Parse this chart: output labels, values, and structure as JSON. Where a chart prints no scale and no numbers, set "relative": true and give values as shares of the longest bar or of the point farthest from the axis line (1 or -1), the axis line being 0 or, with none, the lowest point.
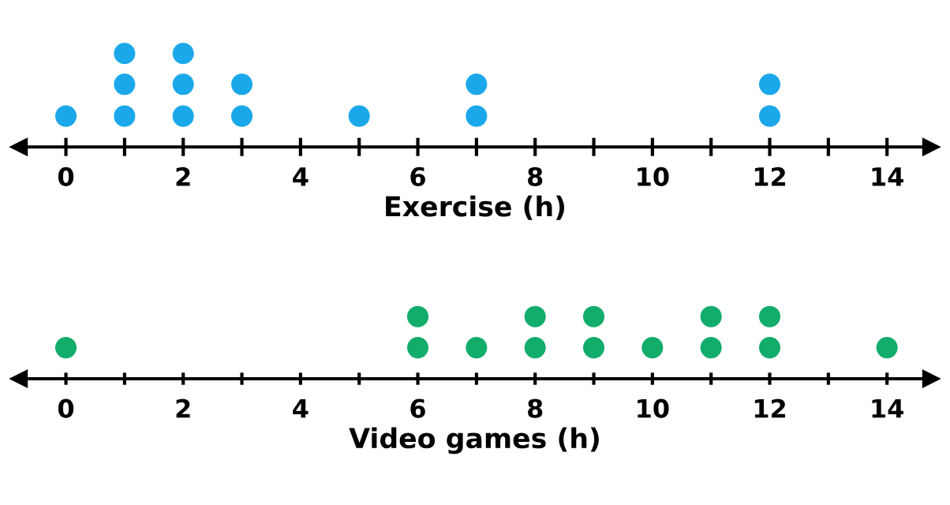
{
  "chart_data": [
    {
      "type": "scatter",
      "xlabel": "Exercise (h)",
      "color": "#1ba8ea",
      "marker": "circle",
      "x": [
        0,
        1,
        1,
        1,
        2,
        2,
        2,
        3,
        3,
        5,
        7,
        7,
        12,
        12
      ],
      "values": [
        0.33,
        0.33,
        0.67,
        1,
        0.33,
        0.67,
        1,
        0.33,
        0.67,
        0.33,
        0.33,
        0.67,
        0.33,
        0.67
      ],
      "xlim": [
        -0.8,
        14.75
      ],
      "relative": true,
      "tick_labels": "x",
      "grid": false,
      "xticks": [
        0,
        {
          "value": 1,
          "label": null
        },
        2,
        {
          "value": 3,
          "label": null
        },
        4,
        {
          "value": 5,
          "label": null
        },
        6,
        {
          "value": 7,
          "label": null
        },
        8,
        {
          "value": 9,
          "label": null
        },
        10,
        {
          "value": 11,
          "label": null
        },
        12,
        {
          "value": 13,
          "label": null
        },
        14
      ]
    },
    {
      "type": "scatter",
      "xlabel": "Video games (h)",
      "color": "#12ad6b",
      "marker": "circle",
      "x": [
        0,
        6,
        6,
        7,
        8,
        8,
        9,
        9,
        10,
        11,
        11,
        12,
        12,
        14
      ],
      "values": [
        0.5,
        0.5,
        1,
        0.5,
        0.5,
        1,
        0.5,
        1,
        0.5,
        0.5,
        1,
        0.5,
        1,
        0.5
      ],
      "xlim": [
        -0.8,
        14.75
      ],
      "relative": true,
      "tick_labels": "x",
      "grid": false,
      "xticks": [
        0,
        {
          "value": 1,
          "label": null
        },
        2,
        {
          "value": 3,
          "label": null
        },
        4,
        {
          "value": 5,
          "label": null
        },
        6,
        {
          "value": 7,
          "label": null
        },
        8,
        {
          "value": 9,
          "label": null
        },
        10,
        {
          "value": 11,
          "label": null
        },
        12,
        {
          "value": 13,
          "label": null
        },
        14
      ]
    }
  ]
}
